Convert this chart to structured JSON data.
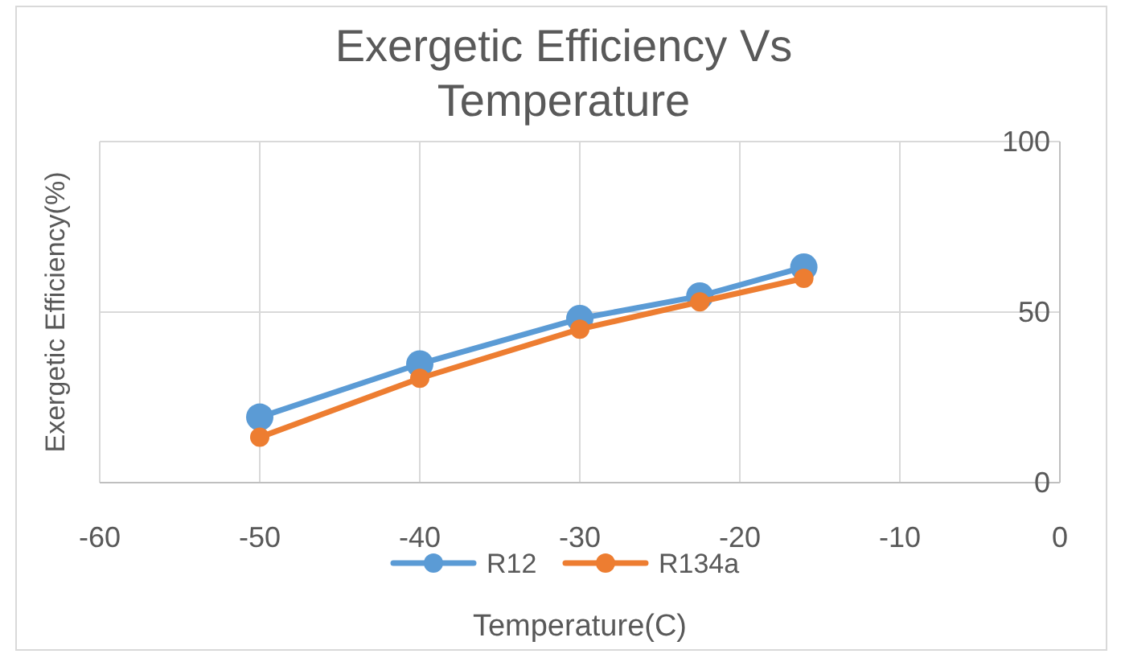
{
  "chart_data": {
    "type": "line",
    "title": "Exergetic Efficiency Vs Temperature",
    "xlabel": "Temperature(C)",
    "ylabel": "Exergetic Efficiency(%)",
    "x": [
      -50,
      -40,
      -30,
      -22.5,
      -16
    ],
    "series": [
      {
        "name": "R12",
        "color": "#5b9bd5",
        "values": [
          19.2,
          34.8,
          48.1,
          54.7,
          63.2
        ]
      },
      {
        "name": "R134a",
        "color": "#ed7d31",
        "values": [
          13.3,
          30.6,
          45,
          53,
          59.9
        ]
      }
    ],
    "xlim": [
      -60,
      0
    ],
    "xticks": [
      -60,
      -50,
      -40,
      -30,
      -20,
      -10,
      0
    ],
    "ylim": [
      0,
      100
    ],
    "yticks": [
      0,
      50,
      100
    ],
    "grid": true,
    "legend": "bottom",
    "marker": "circle",
    "line_style": "solid"
  }
}
